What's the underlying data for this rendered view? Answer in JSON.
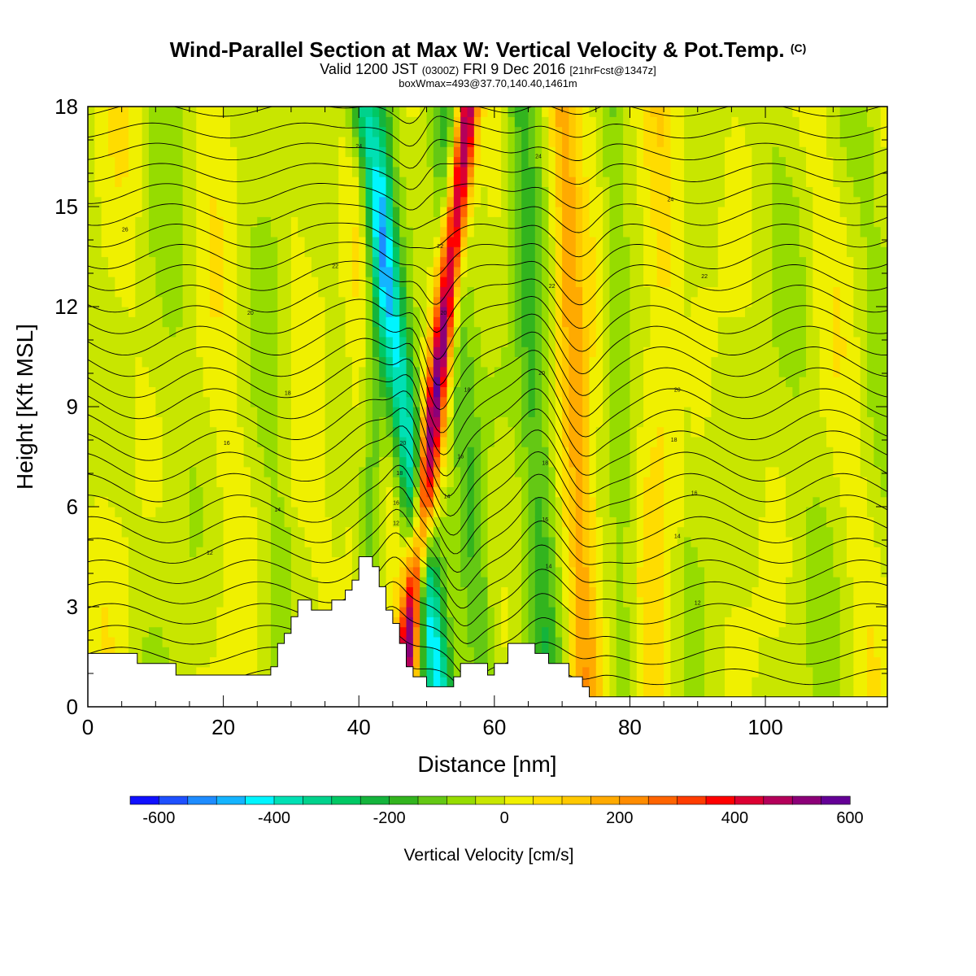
{
  "title": {
    "main": "Wind-Parallel Section at Max W: Vertical Velocity & Pot.Temp.",
    "copyright": "(C)",
    "valid_prefix": "Valid 1200 JST",
    "valid_utc": "(0300Z)",
    "valid_date": "FRI 9 Dec 2016",
    "forecast": "[21hrFcst@1347z]",
    "boxwmax": "boxWmax=493@37.70,140.40,1461m"
  },
  "chart_data": {
    "type": "heatmap",
    "xlabel": "Distance [nm]",
    "ylabel": "Height [Kft MSL]",
    "xlim": [
      0,
      118
    ],
    "ylim": [
      0,
      18
    ],
    "x_ticks": [
      "0",
      "20",
      "40",
      "60",
      "80",
      "100"
    ],
    "y_ticks": [
      "0",
      "3",
      "6",
      "9",
      "12",
      "15",
      "18"
    ],
    "x_tick_values": [
      0,
      20,
      40,
      60,
      80,
      100
    ],
    "y_tick_values": [
      0,
      3,
      6,
      9,
      12,
      15,
      18
    ],
    "colorbar": {
      "title": "Vertical Velocity [cm/s]",
      "min": -650,
      "step": 50,
      "labels": [
        "-600",
        "-400",
        "-200",
        "0",
        "200",
        "400",
        "600"
      ],
      "label_values": [
        -600,
        -400,
        -200,
        0,
        200,
        400,
        600
      ],
      "colors": [
        "#1010ff",
        "#1e50ff",
        "#1e8cff",
        "#14b4ff",
        "#00f5ff",
        "#00e0b4",
        "#00d28c",
        "#00c864",
        "#14b43c",
        "#32b41e",
        "#64c814",
        "#96dc00",
        "#c8e600",
        "#f0f000",
        "#ffdc00",
        "#ffc800",
        "#ffaa00",
        "#ff8c00",
        "#ff6400",
        "#ff3c00",
        "#ff0000",
        "#dc0032",
        "#b4005a",
        "#8c0078",
        "#640096"
      ]
    },
    "terrain": [
      [
        0,
        1.6
      ],
      [
        7.3,
        1.6
      ],
      [
        7.3,
        1.3
      ],
      [
        13,
        1.3
      ],
      [
        13,
        0.95
      ],
      [
        27,
        0.95
      ],
      [
        27,
        1.2
      ],
      [
        28,
        1.2
      ],
      [
        28,
        1.9
      ],
      [
        29,
        1.9
      ],
      [
        29,
        2.2
      ],
      [
        30,
        2.2
      ],
      [
        30,
        2.7
      ],
      [
        31,
        2.7
      ],
      [
        31,
        3.2
      ],
      [
        33,
        3.2
      ],
      [
        33,
        2.9
      ],
      [
        36,
        2.9
      ],
      [
        36,
        3.2
      ],
      [
        38,
        3.2
      ],
      [
        38,
        3.5
      ],
      [
        39,
        3.5
      ],
      [
        39,
        3.8
      ],
      [
        40,
        3.8
      ],
      [
        40,
        4.5
      ],
      [
        42,
        4.5
      ],
      [
        42,
        4.2
      ],
      [
        43,
        4.2
      ],
      [
        43,
        3.6
      ],
      [
        44,
        3.6
      ],
      [
        44,
        2.9
      ],
      [
        45,
        2.9
      ],
      [
        45,
        2.5
      ],
      [
        46,
        2.5
      ],
      [
        46,
        1.9
      ],
      [
        47,
        1.9
      ],
      [
        47,
        1.2
      ],
      [
        48,
        1.2
      ],
      [
        48,
        0.9
      ],
      [
        50,
        0.9
      ],
      [
        50,
        0.6
      ],
      [
        54,
        0.6
      ],
      [
        54,
        0.9
      ],
      [
        55,
        0.9
      ],
      [
        55,
        1.3
      ],
      [
        59,
        1.3
      ],
      [
        59,
        0.95
      ],
      [
        60,
        0.95
      ],
      [
        60,
        1.3
      ],
      [
        62,
        1.3
      ],
      [
        62,
        1.9
      ],
      [
        66,
        1.9
      ],
      [
        66,
        1.6
      ],
      [
        68,
        1.6
      ],
      [
        68,
        1.3
      ],
      [
        71,
        1.3
      ],
      [
        71,
        0.9
      ],
      [
        73,
        0.9
      ],
      [
        73,
        0.6
      ],
      [
        74,
        0.6
      ],
      [
        74,
        0.3
      ],
      [
        118,
        0.3
      ]
    ],
    "theta_levels": [
      "10",
      "11",
      "12",
      "13",
      "14",
      "15",
      "16",
      "17",
      "18",
      "19",
      "20",
      "21",
      "22",
      "23",
      "24",
      "25",
      "26",
      "27",
      "28",
      "29",
      "30",
      "31",
      "32",
      "33",
      "34",
      "35",
      "36",
      "37"
    ],
    "contour_labels": [
      {
        "text": "12",
        "x": 18,
        "y": 4.6
      },
      {
        "text": "14",
        "x": 28,
        "y": 5.9
      },
      {
        "text": "16",
        "x": 20.5,
        "y": 7.9
      },
      {
        "text": "18",
        "x": 29.5,
        "y": 9.4
      },
      {
        "text": "20",
        "x": 24,
        "y": 11.8
      },
      {
        "text": "22",
        "x": 36.5,
        "y": 13.2
      },
      {
        "text": "24",
        "x": 40,
        "y": 16.8
      },
      {
        "text": "26",
        "x": 5.5,
        "y": 14.3
      },
      {
        "text": "12",
        "x": 45.5,
        "y": 5.5
      },
      {
        "text": "16",
        "x": 45.5,
        "y": 6.1
      },
      {
        "text": "18",
        "x": 46,
        "y": 7.0
      },
      {
        "text": "20",
        "x": 46.5,
        "y": 7.9
      },
      {
        "text": "14",
        "x": 53,
        "y": 6.3
      },
      {
        "text": "16",
        "x": 55,
        "y": 7.5
      },
      {
        "text": "18",
        "x": 56,
        "y": 9.5
      },
      {
        "text": "20",
        "x": 52.5,
        "y": 11.8
      },
      {
        "text": "22",
        "x": 52,
        "y": 13.8
      },
      {
        "text": "14",
        "x": 68,
        "y": 4.2
      },
      {
        "text": "16",
        "x": 67.5,
        "y": 5.6
      },
      {
        "text": "18",
        "x": 67.5,
        "y": 7.3
      },
      {
        "text": "20",
        "x": 67,
        "y": 10.0
      },
      {
        "text": "22",
        "x": 68.5,
        "y": 12.6
      },
      {
        "text": "24",
        "x": 66.5,
        "y": 16.5
      },
      {
        "text": "12",
        "x": 90,
        "y": 3.1
      },
      {
        "text": "14",
        "x": 87,
        "y": 5.1
      },
      {
        "text": "16",
        "x": 89.5,
        "y": 6.4
      },
      {
        "text": "18",
        "x": 86.5,
        "y": 8.0
      },
      {
        "text": "20",
        "x": 87,
        "y": 9.5
      },
      {
        "text": "22",
        "x": 91,
        "y": 12.9
      },
      {
        "text": "24",
        "x": 86,
        "y": 15.2
      }
    ]
  }
}
